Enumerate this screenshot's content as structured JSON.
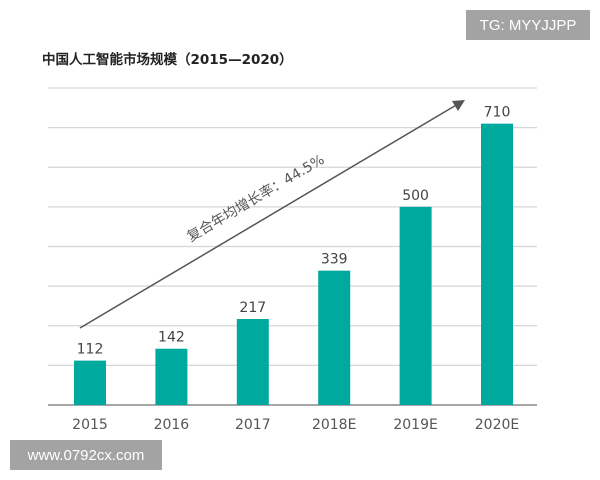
{
  "chart_data": {
    "type": "bar",
    "title": "中国人工智能市场规模（2015—2020）",
    "categories": [
      "2015",
      "2016",
      "2017",
      "2018E",
      "2019E",
      "2020E"
    ],
    "values": [
      112,
      142,
      217,
      339,
      500,
      710
    ],
    "ylim": [
      0,
      800
    ],
    "grid": true,
    "bar_color": "#00a99d",
    "annotation": "复合年均增长率：44.5%",
    "xlabel": "",
    "ylabel": ""
  },
  "watermarks": {
    "top_right": "TG: MYYJJPP",
    "bottom_left": "www.0792cx.com"
  }
}
